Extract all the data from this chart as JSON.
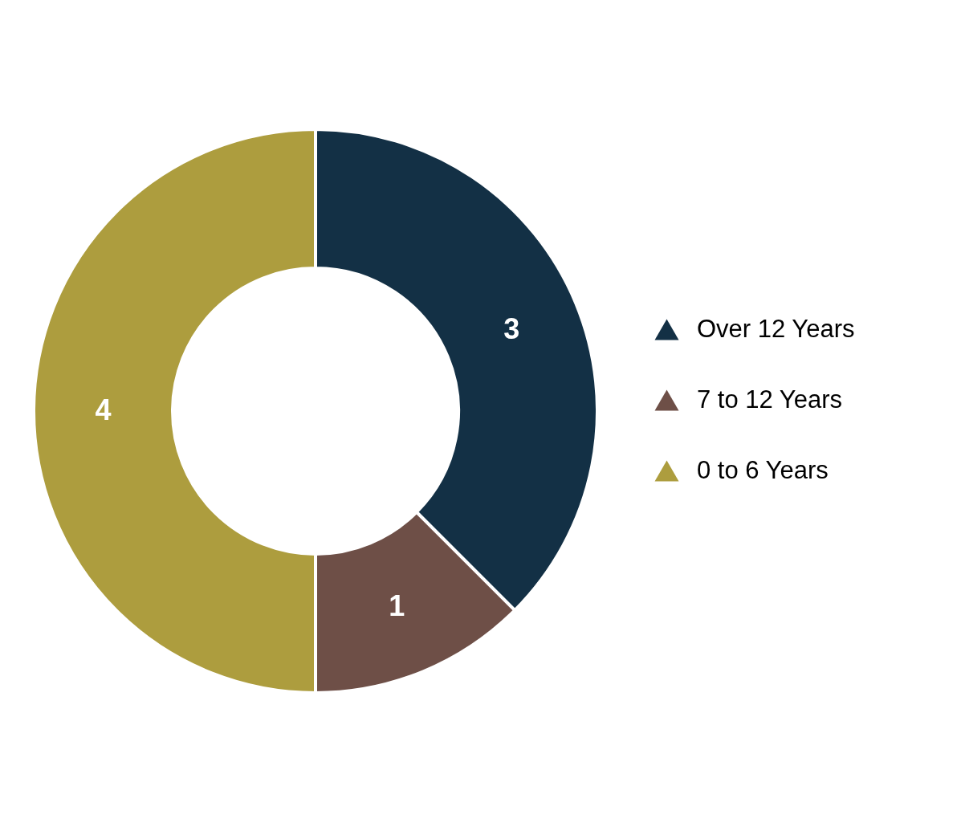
{
  "chart_data": {
    "type": "donut",
    "categories": [
      "Over 12 Years",
      "7 to 12 Years",
      "0 to 6 Years"
    ],
    "values": [
      3,
      1,
      4
    ],
    "colors": [
      "#133045",
      "#6e4f47",
      "#ad9d3e"
    ],
    "data_labels": true,
    "legend": "right"
  }
}
